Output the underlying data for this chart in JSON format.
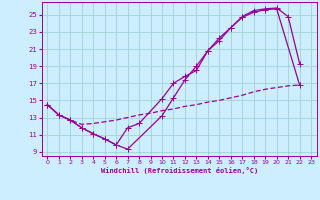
{
  "xlabel": "Windchill (Refroidissement éolien,°C)",
  "bg_color": "#cceeff",
  "line_color": "#990099",
  "grid_color": "#99cccc",
  "xlim": [
    -0.5,
    23.5
  ],
  "ylim": [
    8.5,
    26.5
  ],
  "xticks": [
    0,
    1,
    2,
    3,
    4,
    5,
    6,
    7,
    8,
    9,
    10,
    11,
    12,
    13,
    14,
    15,
    16,
    17,
    18,
    19,
    20,
    21,
    22,
    23
  ],
  "yticks": [
    9,
    11,
    13,
    15,
    17,
    19,
    21,
    23,
    25
  ],
  "curve1_x": [
    0,
    1,
    2,
    3,
    4,
    5,
    6,
    7,
    8,
    10,
    11,
    12,
    13,
    14,
    15,
    16,
    17,
    18,
    19,
    20,
    22
  ],
  "curve1_y": [
    14.5,
    13.3,
    12.7,
    11.8,
    11.1,
    10.5,
    9.8,
    11.8,
    12.3,
    15.2,
    17.0,
    17.8,
    18.5,
    20.8,
    22.0,
    23.5,
    24.7,
    25.3,
    25.6,
    25.7,
    16.8
  ],
  "curve2_x": [
    0,
    1,
    2,
    3,
    4,
    5,
    6,
    7,
    10,
    11,
    12,
    13,
    14,
    15,
    16,
    17,
    18,
    19,
    20,
    21,
    22
  ],
  "curve2_y": [
    14.5,
    13.3,
    12.7,
    11.8,
    11.1,
    10.5,
    9.8,
    9.3,
    13.2,
    15.3,
    17.4,
    19.0,
    20.8,
    22.3,
    23.5,
    24.8,
    25.5,
    25.7,
    25.8,
    24.8,
    19.3
  ],
  "curve3_x": [
    0,
    1,
    2,
    3,
    4,
    5,
    6,
    7,
    8,
    9,
    10,
    11,
    12,
    13,
    14,
    15,
    16,
    17,
    18,
    19,
    20,
    21,
    22
  ],
  "curve3_y": [
    14.5,
    13.3,
    12.7,
    12.2,
    12.3,
    12.5,
    12.7,
    13.0,
    13.3,
    13.5,
    13.8,
    14.0,
    14.3,
    14.5,
    14.8,
    15.0,
    15.3,
    15.6,
    16.0,
    16.3,
    16.5,
    16.7,
    16.8
  ]
}
